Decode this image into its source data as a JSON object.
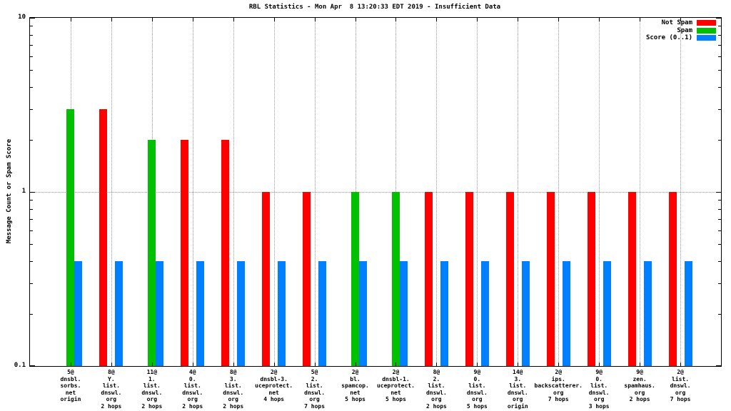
{
  "title": "RBL Statistics - Mon Apr  8 13:20:33 EDT 2019 - Insufficient Data",
  "y_axis": {
    "label": "Message Count or Spam Score",
    "scale": "log",
    "range": [
      0.1,
      10
    ],
    "ticks": [
      {
        "label": "10",
        "value": 10
      },
      {
        "label": "1",
        "value": 1
      },
      {
        "label": "0.1",
        "value": 0.1
      }
    ]
  },
  "legend": {
    "position": "top-right",
    "items": [
      {
        "label": "Not Spam",
        "color": "#ff0000"
      },
      {
        "label": "Spam",
        "color": "#00c000"
      },
      {
        "label": "Score (0..1)",
        "color": "#0080ff"
      }
    ]
  },
  "chart_data": {
    "type": "bar",
    "title": "RBL Statistics - Mon Apr  8 13:20:33 EDT 2019 - Insufficient Data",
    "ylabel": "Message Count or Spam Score",
    "xlabel": "",
    "y_scale": "log",
    "ylim": [
      0.1,
      10
    ],
    "grid": {
      "vertical": "at-each-category",
      "horizontal_at": [
        1
      ]
    },
    "legend_position": "top-right-inside",
    "categories": [
      "5@\ndnsbl.\nsorbs.\nnet\norigin",
      "8@\nY.\nlist.\ndnswl.\norg\n2 hops",
      "11@\n1.\nlist.\ndnswl.\norg\n2 hops",
      "4@\n0.\nlist.\ndnswl.\norg\n2 hops",
      "8@\n3.\nlist.\ndnswl.\norg\n2 hops",
      "2@\ndnsbl-3.\nuceprotect.\nnet\n4 hops",
      "5@\n2.\nlist.\ndnswl.\norg\n7 hops",
      "2@\nbl.\nspamcop.\nnet\n5 hops",
      "2@\ndnsbl-1.\nuceprotect.\nnet\n5 hops",
      "8@\n2.\nlist.\ndnswl.\norg\n2 hops",
      "9@\n0.\nlist.\ndnswl.\norg\n5 hops",
      "14@\n3.\nlist.\ndnswl.\norg\norigin",
      "2@\nips.\nbackscatterer.\norg\n7 hops",
      "9@\n0.\nlist.\ndnswl.\norg\n3 hops",
      "9@\nzen.\nspamhaus.\norg\n2 hops",
      "2@\nlist.\ndnswl.\norg\n7 hops"
    ],
    "series": [
      {
        "name": "Not Spam",
        "color": "#ff0000",
        "values": [
          null,
          3,
          null,
          2,
          2,
          1,
          1,
          null,
          null,
          1,
          1,
          1,
          1,
          1,
          1,
          1
        ]
      },
      {
        "name": "Spam",
        "color": "#00c000",
        "values": [
          3,
          null,
          2,
          null,
          null,
          null,
          null,
          1,
          1,
          null,
          null,
          null,
          null,
          null,
          null,
          null
        ]
      },
      {
        "name": "Score (0..1)",
        "color": "#0080ff",
        "values": [
          0.4,
          0.4,
          0.4,
          0.4,
          0.4,
          0.4,
          0.4,
          0.4,
          0.4,
          0.4,
          0.4,
          0.4,
          0.4,
          0.4,
          0.4,
          0.4
        ]
      }
    ]
  }
}
